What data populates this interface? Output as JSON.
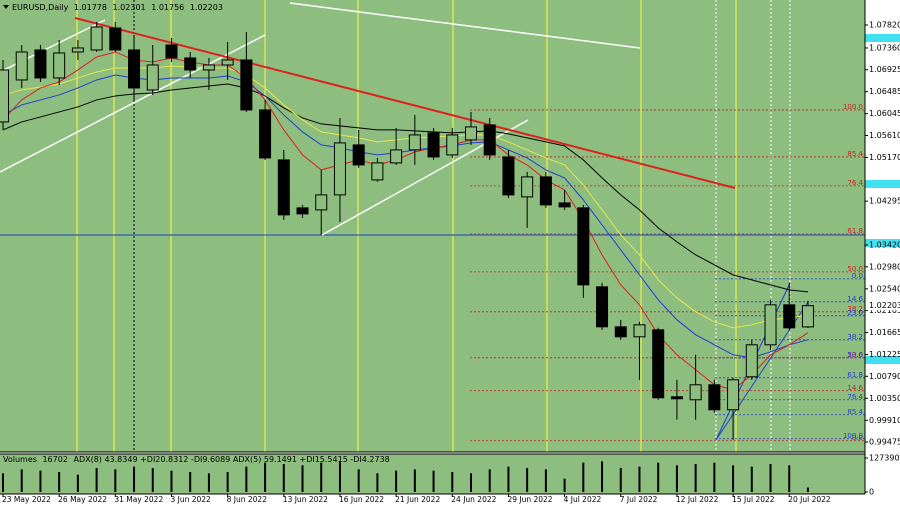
{
  "chart_data": {
    "type": "candlestick",
    "symbol": "EURUSD,Daily",
    "categories": [
      "23 May 2022",
      null,
      null,
      "26 May 2022",
      null,
      null,
      "31 May 2022",
      null,
      null,
      "3 Jun 2022",
      null,
      null,
      "8 Jun 2022",
      null,
      null,
      "13 Jun 2022",
      null,
      null,
      "16 Jun 2022",
      null,
      null,
      "21 Jun 2022",
      null,
      null,
      "24 Jun 2022",
      null,
      null,
      "29 Jun 2022",
      null,
      null,
      "4 Jul 2022",
      null,
      null,
      "7 Jul 2022",
      null,
      null,
      "12 Jul 2022",
      null,
      null,
      "15 Jul 2022",
      null,
      null,
      "20 Jul 2022",
      null
    ],
    "open": [
      1.0588,
      1.0672,
      1.0732,
      1.0676,
      1.0728,
      1.0732,
      1.0776,
      1.0732,
      1.0652,
      1.0742,
      1.0716,
      1.0692,
      1.0702,
      1.0712,
      1.0612,
      1.0512,
      1.0416,
      1.0412,
      1.0442,
      1.0542,
      1.0472,
      1.0506,
      1.0532,
      1.0566,
      1.0522,
      1.0552,
      1.0582,
      1.0518,
      1.0438,
      1.0478,
      1.0426,
      1.0416,
      1.0258,
      1.0178,
      1.0158,
      1.0172,
      1.0038,
      1.0032,
      1.0062,
      1.0012,
      1.0078,
      1.0142,
      1.0222,
      1.01778
    ],
    "high": [
      1.0712,
      1.0742,
      1.0742,
      1.0752,
      1.0752,
      1.0788,
      1.0788,
      1.0762,
      1.0742,
      1.0756,
      1.0728,
      1.0716,
      1.0748,
      1.0768,
      1.0632,
      1.0532,
      1.0422,
      1.0492,
      1.0596,
      1.0572,
      1.0516,
      1.0576,
      1.0602,
      1.0576,
      1.0576,
      1.0608,
      1.0596,
      1.0532,
      1.0488,
      1.0488,
      1.0452,
      1.0422,
      1.0266,
      1.0192,
      1.0188,
      1.0176,
      1.0072,
      1.0122,
      1.0072,
      1.0076,
      1.0152,
      1.0232,
      1.0266,
      1.02301
    ],
    "low": [
      1.0572,
      1.0656,
      1.0668,
      1.0662,
      1.0712,
      1.0728,
      1.0728,
      1.0632,
      1.0642,
      1.0708,
      1.0676,
      1.0652,
      1.0672,
      1.0608,
      1.0512,
      1.0392,
      1.0396,
      1.0362,
      1.0388,
      1.0496,
      1.0468,
      1.0502,
      1.0502,
      1.0512,
      1.0516,
      1.0542,
      1.0512,
      1.0436,
      1.0376,
      1.0416,
      1.0412,
      1.0236,
      1.0172,
      1.0152,
      1.0072,
      1.0032,
      0.9992,
      0.9992,
      1.0006,
      0.9952,
      1.0072,
      1.0132,
      1.0172,
      1.01756
    ],
    "close": [
      1.0692,
      1.0728,
      1.0676,
      1.0726,
      1.0736,
      1.0778,
      1.0732,
      1.0656,
      1.0702,
      1.0716,
      1.0692,
      1.0702,
      1.0712,
      1.0612,
      1.0516,
      1.0402,
      1.0404,
      1.0442,
      1.0546,
      1.0502,
      1.0506,
      1.0532,
      1.0562,
      1.0518,
      1.0562,
      1.0578,
      1.0522,
      1.0442,
      1.0478,
      1.0422,
      1.0418,
      1.0262,
      1.0178,
      1.0158,
      1.0182,
      1.0036,
      1.0034,
      1.0062,
      1.0012,
      1.0072,
      1.0142,
      1.0222,
      1.0176,
      1.02203
    ],
    "up_color": "#8dbd7f",
    "down_color": "#000000",
    "ylim": [
      0.99275,
      1.0832
    ],
    "yticks": [
      {
        "value": 1.0782,
        "label": "1.07820"
      },
      {
        "value": 1.0736,
        "label": "1.07360"
      },
      {
        "value": 1.06925,
        "label": "1.06925"
      },
      {
        "value": 1.06485,
        "label": "1.06485"
      },
      {
        "value": 1.06045,
        "label": "1.06045"
      },
      {
        "value": 1.0561,
        "label": "1.05610"
      },
      {
        "value": 1.0517,
        "label": "1.05170"
      },
      {
        "value": 1.04295,
        "label": "1.04295"
      },
      {
        "value": 1.0342,
        "label": "1.03420"
      },
      {
        "value": 1.0298,
        "label": "1.02980"
      },
      {
        "value": 1.0254,
        "label": "1.02540"
      },
      {
        "value": 1.02105,
        "label": "1.02105"
      },
      {
        "value": 1.01665,
        "label": "1.01665"
      },
      {
        "value": 1.01225,
        "label": "1.01225"
      },
      {
        "value": 1.0079,
        "label": "1.00790"
      },
      {
        "value": 1.0035,
        "label": "1.00350"
      },
      {
        "value": 0.9991,
        "label": "0.99910"
      },
      {
        "value": 0.99475,
        "label": "0.99475"
      }
    ],
    "overlays": [
      {
        "color": "#000000",
        "values": [
          1.0572,
          1.0588,
          1.0598,
          1.0608,
          1.0618,
          1.0632,
          1.064,
          1.0644,
          1.0646,
          1.0652,
          1.0656,
          1.066,
          1.0664,
          1.0656,
          1.064,
          1.0616,
          1.0596,
          1.0584,
          1.058,
          1.0576,
          1.0572,
          1.0572,
          1.057,
          1.0568,
          1.0566,
          1.0568,
          1.057,
          1.0564,
          1.0556,
          1.0548,
          1.054,
          1.0512,
          1.0476,
          1.0442,
          1.0412,
          1.0376,
          1.0348,
          1.0322,
          1.0302,
          1.0282,
          1.0272,
          1.0262,
          1.0252,
          1.0248
        ]
      },
      {
        "color": "#e8e84a",
        "values": [
          1.0642,
          1.0652,
          1.0658,
          1.0664,
          1.0676,
          1.0688,
          1.0696,
          1.0696,
          1.0696,
          1.07,
          1.0698,
          1.0696,
          1.0696,
          1.0682,
          1.0656,
          1.0622,
          1.0592,
          1.0568,
          1.0562,
          1.0556,
          1.0548,
          1.0552,
          1.0556,
          1.0558,
          1.056,
          1.0562,
          1.0562,
          1.0548,
          1.0532,
          1.0516,
          1.0502,
          1.0462,
          1.0412,
          1.0362,
          1.0322,
          1.0272,
          1.0236,
          1.0208,
          1.0188,
          1.0176,
          1.0182,
          1.0192,
          1.0196,
          1.0202
        ]
      },
      {
        "color": "#1f3fd0",
        "values": [
          1.0602,
          1.0622,
          1.0632,
          1.0642,
          1.0656,
          1.0672,
          1.0682,
          1.0676,
          1.0672,
          1.0676,
          1.0676,
          1.0676,
          1.068,
          1.0668,
          1.064,
          1.0602,
          1.0568,
          1.0542,
          1.0536,
          1.0528,
          1.0522,
          1.0526,
          1.0532,
          1.0536,
          1.054,
          1.0546,
          1.0548,
          1.0532,
          1.0516,
          1.0492,
          1.0476,
          1.0432,
          1.0382,
          1.0332,
          1.0282,
          1.0232,
          1.0192,
          1.0162,
          1.0142,
          1.0122,
          1.0116,
          1.0128,
          1.0142,
          1.0152
        ]
      },
      {
        "color": "#e02020",
        "values": [
          1.0592,
          1.0632,
          1.0656,
          1.0668,
          1.0692,
          1.0718,
          1.0728,
          1.0712,
          1.0708,
          1.0716,
          1.0708,
          1.0702,
          1.0702,
          1.0676,
          1.0632,
          1.0572,
          1.0522,
          1.0492,
          1.0502,
          1.0512,
          1.0502,
          1.0512,
          1.0528,
          1.0536,
          1.0542,
          1.0552,
          1.0552,
          1.0522,
          1.0502,
          1.0472,
          1.0452,
          1.0392,
          1.0322,
          1.0262,
          1.0222,
          1.0162,
          1.0122,
          1.0092,
          1.0062,
          1.0052,
          1.0082,
          1.0122,
          1.0142,
          1.0166
        ]
      }
    ],
    "fibonacci": [
      {
        "color": "#d02020",
        "levels": [
          {
            "label": "100.0",
            "value": 1.0612
          },
          {
            "label": "85.4",
            "value": 1.0518
          },
          {
            "label": "76.4",
            "value": 1.046
          },
          {
            "label": "61.8",
            "value": 1.0364
          },
          {
            "label": "50.0",
            "value": 1.0288
          },
          {
            "label": "38.2",
            "value": 1.0208
          },
          {
            "label": "23.6",
            "value": 1.0116
          },
          {
            "label": "14.6",
            "value": 1.005
          },
          {
            "label": "0.0",
            "value": 0.995
          }
        ]
      },
      {
        "color": "#1f3fd0",
        "levels": [
          {
            "label": "0.0",
            "value": 1.0274
          },
          {
            "label": "14.6",
            "value": 1.0228
          },
          {
            "label": "23.6",
            "value": 1.02
          },
          {
            "label": "38.2",
            "value": 1.0152
          },
          {
            "label": "50.0",
            "value": 1.0116
          },
          {
            "label": "61.8",
            "value": 1.0076
          },
          {
            "label": "76.4",
            "value": 1.0032
          },
          {
            "label": "85.4",
            "value": 1.0002
          },
          {
            "label": "100.0",
            "value": 0.9954
          }
        ]
      }
    ],
    "volume": {
      "title": "Volumes",
      "indicators": "ADX(8) 43.8349 +DI20.8312 -DI9.6089 ADX(5) 59.1491 +DI15.5415 -DI4.2738",
      "color": "#000000",
      "values": [
        70000,
        85000,
        80000,
        75000,
        65000,
        90000,
        85000,
        95000,
        90000,
        80000,
        75000,
        70000,
        75000,
        95000,
        110000,
        105000,
        100000,
        110000,
        115000,
        85000,
        70000,
        80000,
        85000,
        80000,
        75000,
        70000,
        85000,
        95000,
        90000,
        85000,
        50000,
        110000,
        115000,
        90000,
        95000,
        110000,
        100000,
        105000,
        110000,
        100000,
        95000,
        105000,
        100000,
        16702
      ],
      "ylim": [
        0,
        127390
      ],
      "yticks": [
        0,
        127390
      ]
    }
  }
}
